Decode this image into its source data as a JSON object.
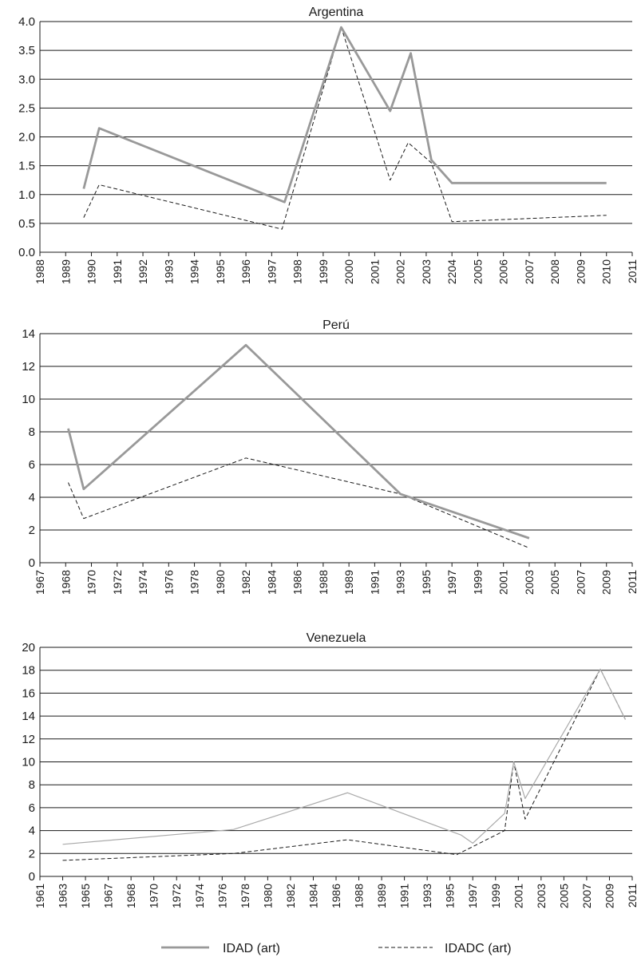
{
  "chart_data": [
    {
      "type": "line",
      "title": "Argentina",
      "ylim": [
        0,
        4
      ],
      "yticks": [
        "0.0",
        "0.5",
        "1.0",
        "1.5",
        "2.0",
        "2.5",
        "3.0",
        "3.5",
        "4.0"
      ],
      "categories": [
        "1988",
        "1989",
        "1990",
        "1991",
        "1992",
        "1993",
        "1994",
        "1995",
        "1996",
        "1997",
        "1998",
        "1999",
        "2000",
        "2001",
        "2002",
        "2003",
        "2204",
        "2005",
        "2006",
        "2007",
        "2008",
        "2009",
        "2010",
        "2011"
      ],
      "grid": true,
      "series": [
        {
          "name": "IDAD (art)",
          "x": [
            1.7,
            2.3,
            9.5,
            11.7,
            13.6,
            14.4,
            15.2,
            16.0,
            22.0
          ],
          "y": [
            1.1,
            2.15,
            0.87,
            3.9,
            2.45,
            3.45,
            1.6,
            1.2,
            1.2
          ]
        },
        {
          "name": "IDADC (art)",
          "x": [
            1.7,
            2.3,
            9.4,
            11.7,
            13.6,
            14.3,
            15.2,
            16.0,
            22.0
          ],
          "y": [
            0.6,
            1.17,
            0.4,
            3.9,
            1.25,
            1.9,
            1.55,
            0.53,
            0.64
          ]
        }
      ]
    },
    {
      "type": "line",
      "title": "Perú",
      "ylim": [
        0,
        14
      ],
      "yticks": [
        "0",
        "2",
        "4",
        "6",
        "8",
        "10",
        "12",
        "14"
      ],
      "categories": [
        "1967",
        "1968",
        "1970",
        "1972",
        "1974",
        "1976",
        "1978",
        "1980",
        "1982",
        "1984",
        "1986",
        "1988",
        "1989",
        "1991",
        "1993",
        "1995",
        "1997",
        "1999",
        "2001",
        "2003",
        "2005",
        "2007",
        "2009",
        "2011"
      ],
      "grid": true,
      "series": [
        {
          "name": "IDAD (art)",
          "x": [
            1.1,
            1.7,
            8.0,
            14.0,
            19.0
          ],
          "y": [
            8.2,
            4.5,
            13.3,
            4.2,
            1.5
          ]
        },
        {
          "name": "IDADC (art)",
          "x": [
            1.1,
            1.7,
            8.0,
            14.0,
            19.0
          ],
          "y": [
            4.9,
            2.7,
            6.4,
            4.2,
            0.9
          ]
        }
      ]
    },
    {
      "type": "line",
      "title": "Venezuela",
      "ylim": [
        0,
        20
      ],
      "yticks": [
        "0",
        "2",
        "4",
        "6",
        "8",
        "10",
        "12",
        "14",
        "16",
        "18",
        "20"
      ],
      "categories": [
        "1961",
        "1963",
        "1965",
        "1967",
        "1968",
        "1970",
        "1972",
        "1974",
        "1976",
        "1978",
        "1980",
        "1982",
        "1984",
        "1986",
        "1988",
        "1989",
        "1991",
        "1993",
        "1995",
        "1997",
        "1999",
        "2001",
        "2003",
        "2005",
        "2007",
        "2009",
        "2011"
      ],
      "grid": true,
      "series": [
        {
          "name": "IDAD (art)",
          "x": [
            1.0,
            8.5,
            13.5,
            18.5,
            19.0,
            20.4,
            20.8,
            21.3,
            24.6,
            25.7
          ],
          "y": [
            2.8,
            4.1,
            7.3,
            3.6,
            2.9,
            5.5,
            10.0,
            6.8,
            18.1,
            13.7
          ]
        },
        {
          "name": "IDADC (art)",
          "x": [
            1.0,
            8.5,
            13.5,
            18.3,
            20.4,
            20.8,
            21.3,
            24.6,
            25.7
          ],
          "y": [
            1.4,
            2.0,
            3.2,
            1.9,
            4.0,
            10.0,
            5.0,
            18.1,
            13.7
          ]
        }
      ]
    }
  ],
  "legend": [
    {
      "label": "IDAD (art)",
      "color": "#999999",
      "dash": false
    },
    {
      "label": "IDADC (art)",
      "color": "#1a1a1a",
      "dash": true
    }
  ],
  "colors": {
    "idad": "#999999",
    "idadc": "#1a1a1a",
    "grid": "#1a1a1a"
  }
}
